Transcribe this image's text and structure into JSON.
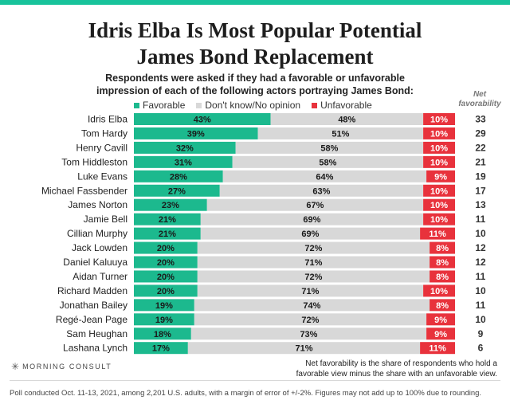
{
  "header": {
    "title_line1": "Idris Elba Is Most Popular Potential",
    "title_line2": "James Bond Replacement",
    "subtitle_line1": "Respondents were asked if they had a favorable or unfavorable",
    "subtitle_line2": "impression of each of the following actors portraying James Bond:",
    "net_label_line1": "Net",
    "net_label_line2": "favorability"
  },
  "legend": {
    "favorable": "Favorable",
    "neutral": "Don't know/No opinion",
    "unfavorable": "Unfavorable"
  },
  "colors": {
    "favorable": "#1cb98e",
    "neutral": "#d8d8d8",
    "unfavorable": "#e8323c",
    "accent": "#18c39b"
  },
  "chart_data": {
    "type": "bar",
    "orientation": "horizontal",
    "stacked": true,
    "title": "Idris Elba Is Most Popular Potential James Bond Replacement",
    "xlim": [
      0,
      100
    ],
    "categories": [
      "Idris Elba",
      "Tom Hardy",
      "Henry Cavill",
      "Tom Hiddleston",
      "Luke Evans",
      "Michael Fassbender",
      "James Norton",
      "Jamie Bell",
      "Cillian Murphy",
      "Jack Lowden",
      "Daniel Kaluuya",
      "Aidan Turner",
      "Richard Madden",
      "Jonathan Bailey",
      "Regé-Jean Page",
      "Sam Heughan",
      "Lashana Lynch"
    ],
    "series": [
      {
        "name": "Favorable",
        "values": [
          43,
          39,
          32,
          31,
          28,
          27,
          23,
          21,
          21,
          20,
          20,
          20,
          20,
          19,
          19,
          18,
          17
        ]
      },
      {
        "name": "Don't know/No opinion",
        "values": [
          48,
          51,
          58,
          58,
          64,
          63,
          67,
          69,
          69,
          72,
          71,
          72,
          71,
          74,
          72,
          73,
          71
        ]
      },
      {
        "name": "Unfavorable",
        "values": [
          10,
          10,
          10,
          10,
          9,
          10,
          10,
          10,
          11,
          8,
          8,
          8,
          10,
          8,
          9,
          9,
          11
        ]
      }
    ],
    "net_favorability": [
      33,
      29,
      22,
      21,
      19,
      17,
      13,
      11,
      10,
      12,
      12,
      11,
      10,
      11,
      10,
      9,
      6
    ]
  },
  "footer": {
    "brand": "MORNING CONSULT",
    "net_note_line1": "Net favorability is the share of respondents who hold a",
    "net_note_line2": "favorable view minus the share with an unfavorable view.",
    "source": "Poll conducted Oct. 11-13, 2021, among 2,201 U.S. adults, with a margin of error of +/-2%. Figures may not add up to 100% due to rounding."
  }
}
